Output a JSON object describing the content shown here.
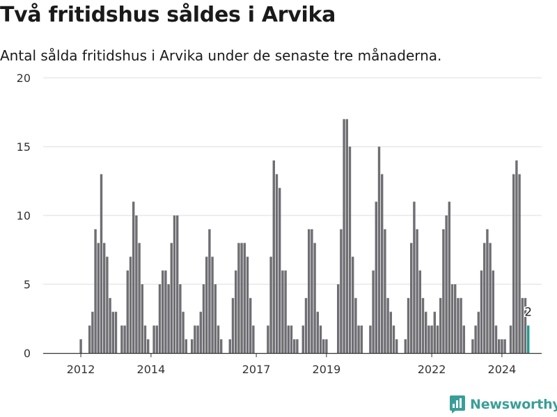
{
  "header": {
    "title": "Två fritidshus såldes i Arvika",
    "subtitle": "Antal sålda fritidshus i Arvika under de senaste tre månaderna."
  },
  "brand": {
    "name": "Newsworthy",
    "color": "#3a9e98"
  },
  "colors": {
    "bar": "#6e6e73",
    "highlight": "#1f9a8f",
    "grid": "#dedede",
    "axis": "#333333"
  },
  "chart_data": {
    "type": "bar",
    "title": "Två fritidshus såldes i Arvika",
    "subtitle": "Antal sålda fritidshus i Arvika under de senaste tre månaderna.",
    "ylim": [
      0,
      20
    ],
    "yticks": [
      0,
      5,
      10,
      15,
      20
    ],
    "grid": true,
    "x_ticks": [
      {
        "label": "2012",
        "month_index": 7
      },
      {
        "label": "2014",
        "month_index": 31
      },
      {
        "label": "2017",
        "month_index": 67
      },
      {
        "label": "2019",
        "month_index": 91
      },
      {
        "label": "2022",
        "month_index": 127
      },
      {
        "label": "2024",
        "month_index": 151
      }
    ],
    "values": [
      null,
      0,
      0,
      0,
      0,
      0,
      0,
      1,
      0,
      0,
      2,
      3,
      9,
      8,
      13,
      8,
      7,
      4,
      3,
      3,
      0,
      2,
      2,
      6,
      7,
      11,
      10,
      8,
      5,
      2,
      1,
      0,
      2,
      2,
      5,
      6,
      6,
      5,
      8,
      10,
      10,
      5,
      3,
      1,
      0,
      1,
      2,
      2,
      3,
      5,
      7,
      9,
      7,
      5,
      2,
      1,
      0,
      0,
      1,
      4,
      6,
      8,
      8,
      8,
      7,
      4,
      2,
      0,
      0,
      0,
      0,
      2,
      7,
      14,
      13,
      12,
      6,
      6,
      2,
      2,
      1,
      1,
      0,
      2,
      4,
      9,
      9,
      8,
      3,
      2,
      1,
      1,
      0,
      0,
      0,
      5,
      9,
      17,
      17,
      15,
      7,
      4,
      2,
      2,
      0,
      0,
      2,
      6,
      11,
      15,
      13,
      9,
      4,
      3,
      2,
      1,
      0,
      0,
      1,
      4,
      8,
      11,
      9,
      6,
      4,
      3,
      2,
      2,
      3,
      2,
      4,
      9,
      10,
      11,
      5,
      5,
      4,
      4,
      2,
      0,
      0,
      1,
      2,
      3,
      6,
      8,
      9,
      8,
      6,
      2,
      1,
      1,
      1,
      0,
      2,
      13,
      14,
      13,
      4,
      4,
      2
    ],
    "highlight_last": true,
    "annotation": {
      "text": "2",
      "value": 2
    }
  }
}
